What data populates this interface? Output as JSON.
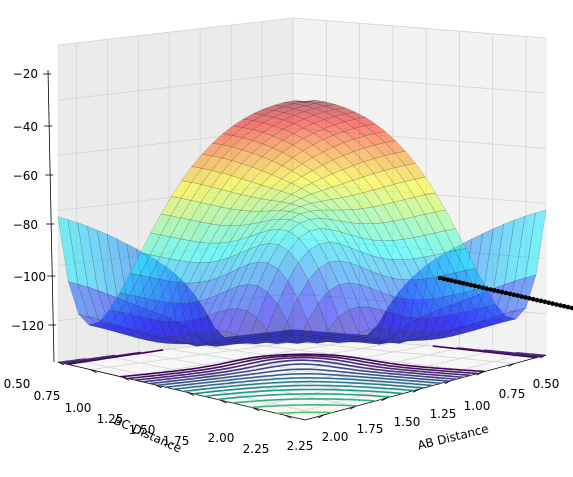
{
  "chart_data": {
    "type": "surface3d",
    "title": "",
    "xlabel": "AB Distance",
    "ylabel": "BC Distance",
    "zlabel": "",
    "x_ticks": [
      "0.50",
      "0.75",
      "1.00",
      "1.25",
      "1.50",
      "1.75",
      "2.00",
      "2.25"
    ],
    "y_ticks": [
      "0.50",
      "0.75",
      "1.00",
      "1.25",
      "1.50",
      "1.75",
      "2.00",
      "2.25"
    ],
    "z_ticks": [
      "−20",
      "−40",
      "−60",
      "−80",
      "−100",
      "−120"
    ],
    "xlim": [
      0.5,
      2.4
    ],
    "ylim": [
      0.5,
      2.4
    ],
    "zlim": [
      -135,
      -20
    ],
    "surface_colormap": "jet",
    "contour_colormap": "viridis",
    "surface_alpha": 0.5,
    "contour_levels": 20,
    "grid": true,
    "trajectory_color": "#000000"
  }
}
